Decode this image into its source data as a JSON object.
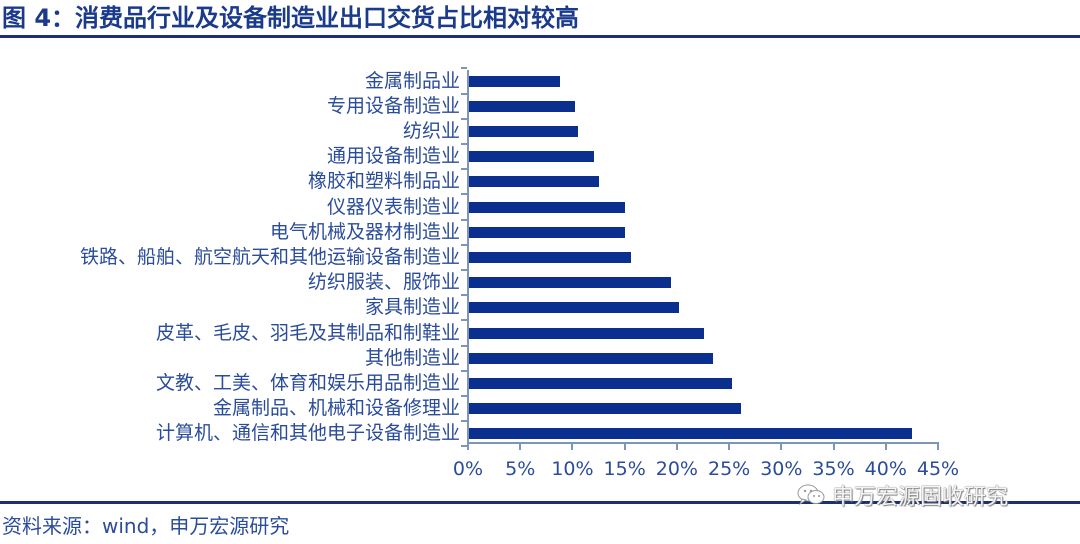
{
  "header": {
    "title": "图 4：消费品行业及设备制造业出口交货占比相对较高"
  },
  "footer": {
    "source": "资料来源：wind，申万宏源研究",
    "watermark": "申万宏源固收研究",
    "watermark_icon": "wechat-icon"
  },
  "colors": {
    "bar": "#0a2f8f",
    "title": "#1a3a8c",
    "rule": "#1c2f6e",
    "label": "#2b4c9b",
    "axis": "#7f95b8"
  },
  "chart_data": {
    "type": "bar",
    "orientation": "horizontal",
    "title": "图 4：消费品行业及设备制造业出口交货占比相对较高",
    "xlabel": "",
    "ylabel": "",
    "xlim": [
      0,
      0.45
    ],
    "x_ticks": [
      "0%",
      "5%",
      "10%",
      "15%",
      "20%",
      "25%",
      "30%",
      "35%",
      "40%",
      "45%"
    ],
    "grid": false,
    "legend": null,
    "categories": [
      "金属制品业",
      "专用设备制造业",
      "纺织业",
      "通用设备制造业",
      "橡胶和塑料制品业",
      "仪器仪表制造业",
      "电气机械及器材制造业",
      "铁路、船舶、航空航天和其他运输设备制造业",
      "纺织服装、服饰业",
      "家具制造业",
      "皮革、毛皮、羽毛及其制品和制鞋业",
      "其他制造业",
      "文教、工美、体育和娱乐用品制造业",
      "金属制品、机械和设备修理业",
      "计算机、通信和其他电子设备制造业"
    ],
    "values": [
      8.8,
      10.2,
      10.5,
      12.1,
      12.5,
      15.0,
      15.0,
      15.6,
      19.4,
      20.2,
      22.6,
      23.5,
      25.3,
      26.1,
      42.5
    ],
    "unit": "%"
  }
}
